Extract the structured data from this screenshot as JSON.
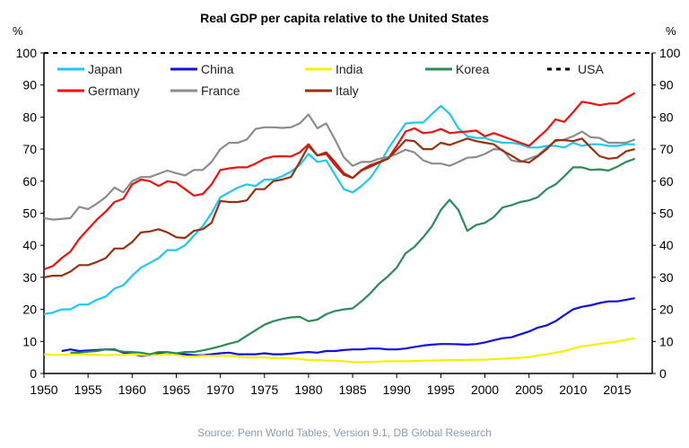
{
  "chart_data": {
    "type": "line",
    "title": "Real GDP per capita relative to the United States",
    "ylabel_left": "%",
    "ylabel_right": "%",
    "source": "Source: Penn World Tables, Version 9.1, DB Global Research",
    "xlim": [
      1950,
      2017
    ],
    "ylim": [
      0,
      100
    ],
    "x_ticks": [
      1950,
      1955,
      1960,
      1965,
      1970,
      1975,
      1980,
      1985,
      1990,
      1995,
      2000,
      2005,
      2010,
      2015
    ],
    "y_ticks": [
      0,
      10,
      20,
      30,
      40,
      50,
      60,
      70,
      80,
      90,
      100
    ],
    "grid": false,
    "legend_placement": "top, inside plot",
    "series": [
      {
        "name": "Japan",
        "color": "#1ec8f0",
        "start": 1950,
        "values": [
          18.5,
          19,
          20,
          20,
          21.5,
          21.5,
          23,
          24,
          26.5,
          27.5,
          30.5,
          33,
          34.5,
          36,
          38.5,
          38.5,
          40,
          43,
          46,
          50,
          55,
          56.5,
          58,
          59,
          58.5,
          60.5,
          60.5,
          61.5,
          63,
          65,
          68.5,
          66,
          66.5,
          62,
          57.5,
          56.5,
          58.5,
          61,
          65,
          70,
          74,
          78,
          78.3,
          78.3,
          81,
          83.5,
          81,
          76.5,
          74,
          73.5,
          73.5,
          72.5,
          72,
          72,
          71.5,
          70.5,
          70.5,
          71,
          71,
          70.5,
          72,
          71,
          71.5,
          71.5,
          71,
          71,
          71.5,
          71.5
        ]
      },
      {
        "name": "China",
        "color": "#1010e0",
        "start": 1952,
        "values": [
          7,
          7.5,
          7,
          7.2,
          7.3,
          7.5,
          7.5,
          6.5,
          6.2,
          5.5,
          5.7,
          6.2,
          6,
          6.2,
          6,
          5.7,
          5.7,
          6,
          6.3,
          6.5,
          6,
          6,
          6,
          6.3,
          6,
          6,
          6.2,
          6.5,
          6.7,
          6.5,
          7,
          7,
          7.3,
          7.5,
          7.5,
          7.8,
          7.8,
          7.5,
          7.5,
          7.8,
          8.3,
          8.7,
          9,
          9.2,
          9.2,
          9.1,
          9,
          9.2,
          9.7,
          10.4,
          11,
          11.3,
          12.2,
          13.1,
          14.3,
          15,
          16.3,
          18.2,
          20,
          20.8,
          21.3,
          22,
          22.5,
          22.5,
          23,
          23.5
        ]
      },
      {
        "name": "India",
        "color": "#f5f000",
        "start": 1950,
        "values": [
          6,
          5.8,
          5.8,
          6,
          6,
          5.8,
          5.8,
          5.7,
          5.8,
          5.8,
          6,
          5.8,
          5.7,
          5.8,
          6,
          5.8,
          5.3,
          5.3,
          5.5,
          5.5,
          5.5,
          5.5,
          5.3,
          5,
          5,
          5,
          4.8,
          4.8,
          4.7,
          4.5,
          4.2,
          4.2,
          4,
          4,
          3.8,
          3.5,
          3.5,
          3.6,
          3.7,
          3.8,
          3.8,
          3.8,
          3.9,
          4,
          4,
          4.1,
          4.2,
          4.2,
          4.2,
          4.3,
          4.3,
          4.5,
          4.6,
          4.8,
          4.9,
          5.1,
          5.6,
          6,
          6.5,
          7,
          7.8,
          8.5,
          8.8,
          9.3,
          9.6,
          10,
          10.5,
          11
        ]
      },
      {
        "name": "Korea",
        "color": "#2e8b57",
        "start": 1953,
        "values": [
          6.5,
          6.5,
          6.8,
          7,
          7.5,
          7.3,
          6.8,
          6.7,
          6.5,
          6,
          6.7,
          6.7,
          6.3,
          6.7,
          6.7,
          7.2,
          7.8,
          8.5,
          9.3,
          10,
          11.8,
          13.5,
          15.2,
          16.3,
          17,
          17.5,
          17.7,
          16.3,
          16.8,
          18.5,
          19.5,
          20,
          20.3,
          22.5,
          25,
          28,
          30.3,
          33,
          37.5,
          39.5,
          42.5,
          46,
          51,
          54.2,
          51,
          44.5,
          46.3,
          47,
          48.8,
          51.8,
          52.5,
          53.5,
          54,
          55,
          57.5,
          59,
          61.5,
          64.3,
          64.3,
          63.5,
          63.7,
          63.3,
          64.5,
          66,
          67
        ]
      },
      {
        "name": "USA",
        "color": "#000000",
        "dashed": true,
        "start": 1950,
        "values": [
          100,
          100
        ]
      },
      {
        "name": "Germany",
        "color": "#f01010",
        "start": 1950,
        "values": [
          32.5,
          33.5,
          36,
          38,
          42,
          45,
          48,
          50.5,
          53.5,
          54.5,
          59,
          60.5,
          60,
          58.5,
          60,
          59.5,
          57.5,
          55.5,
          56,
          59,
          63.5,
          64,
          64.3,
          64.3,
          65.5,
          67,
          67.7,
          67.8,
          67.7,
          69,
          71.5,
          68,
          68.5,
          65,
          62,
          61,
          63.5,
          65,
          66,
          67,
          71,
          75.5,
          76.5,
          75,
          75.3,
          76.3,
          75,
          75.3,
          75.5,
          75.8,
          74,
          75,
          74,
          73,
          72,
          71,
          73.5,
          76,
          79.3,
          78.5,
          81.5,
          84.8,
          84.3,
          83.7,
          84.2,
          84.3,
          86,
          87.5
        ]
      },
      {
        "name": "France",
        "color": "#8c8c8c",
        "start": 1950,
        "values": [
          48.5,
          48,
          48.2,
          48.5,
          52,
          51.3,
          53,
          55,
          58,
          56.5,
          60,
          61.3,
          61.3,
          62.3,
          63.3,
          62.5,
          61.8,
          63.5,
          63.5,
          66,
          70,
          72,
          72,
          73,
          76.3,
          76.8,
          76.8,
          76.6,
          76.8,
          78,
          80.8,
          76.5,
          78,
          73,
          67.5,
          64.8,
          66,
          66,
          67,
          67.5,
          68.5,
          69.8,
          69,
          66.5,
          65.5,
          65.5,
          64.8,
          66,
          67.3,
          67.5,
          68.5,
          70,
          69.8,
          66.5,
          66,
          67,
          68,
          70.5,
          72.5,
          73,
          74,
          75.5,
          73.7,
          73.5,
          72,
          72,
          72,
          73
        ]
      },
      {
        "name": "Italy",
        "color": "#983010",
        "start": 1950,
        "values": [
          30,
          30.5,
          30.5,
          31.8,
          33.8,
          33.8,
          34.8,
          36,
          39,
          39,
          41,
          44,
          44.3,
          45,
          44,
          42.5,
          42.3,
          44.5,
          45,
          47,
          53.8,
          53.5,
          53.5,
          54,
          57.5,
          57.5,
          60,
          60.5,
          61.3,
          66,
          71,
          68,
          69,
          66,
          62.5,
          61,
          63.3,
          64.5,
          65.8,
          67,
          69.8,
          72.8,
          72.5,
          70,
          70,
          72,
          71.3,
          72.3,
          73.3,
          72.5,
          72,
          71.5,
          69.5,
          68,
          66.3,
          65.8,
          67.8,
          70,
          72.8,
          72.8,
          72.5,
          73.3,
          70.5,
          67.8,
          67,
          67.3,
          69.3,
          70
        ]
      }
    ]
  }
}
